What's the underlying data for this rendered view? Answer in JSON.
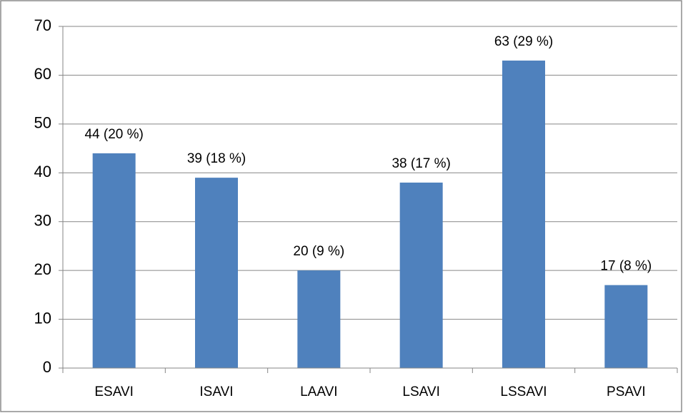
{
  "chart_data": {
    "type": "bar",
    "categories": [
      "ESAVI",
      "ISAVI",
      "LAAVI",
      "LSAVI",
      "LSSAVI",
      "PSAVI"
    ],
    "values": [
      44,
      39,
      20,
      38,
      63,
      17
    ],
    "value_labels": [
      "44 (20 %)",
      "39 (18 %)",
      "20 (9 %)",
      "38 (17 %)",
      "63 (29 %)",
      "17 (8 %)"
    ],
    "color": "#4f81bd",
    "ylim": [
      0,
      70
    ],
    "yticks": [
      0,
      10,
      20,
      30,
      40,
      50,
      60,
      70
    ],
    "grid": true
  }
}
